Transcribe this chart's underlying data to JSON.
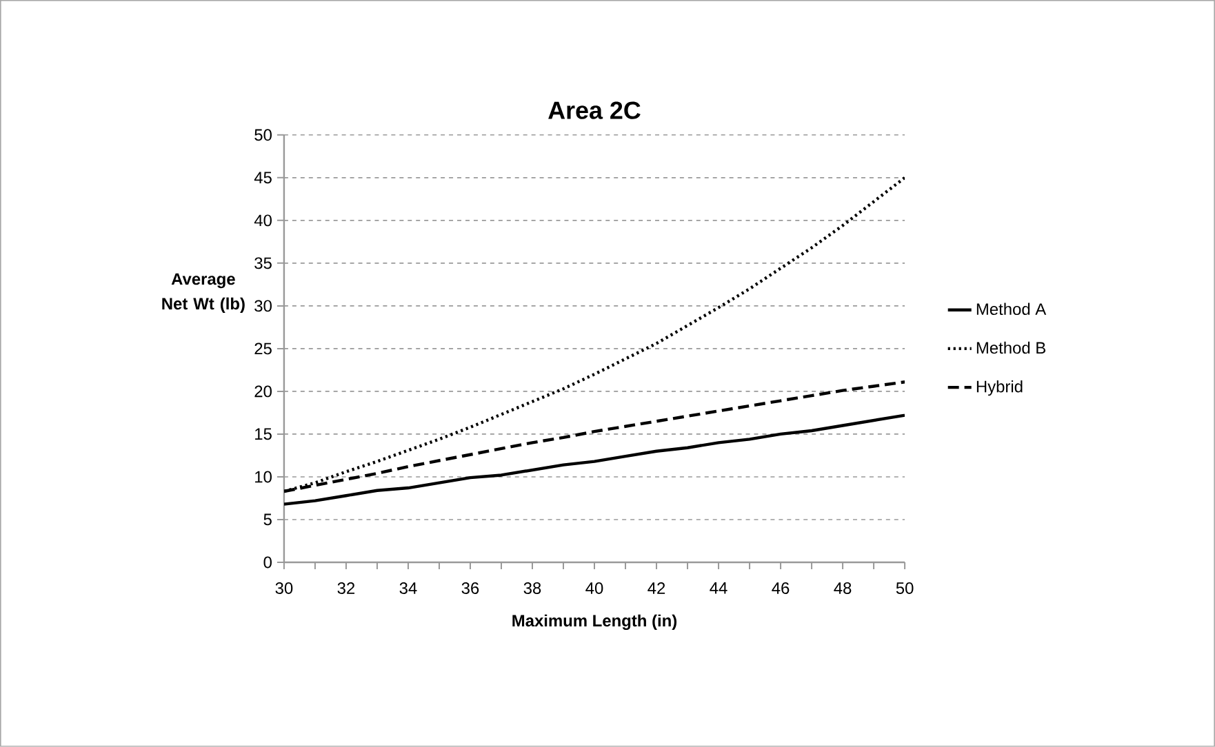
{
  "chart_data": {
    "type": "line",
    "title": "Area 2C",
    "xlabel": "Maximum Length (in)",
    "ylabel": "Average Net Wt (lb)",
    "x": [
      30,
      31,
      32,
      33,
      34,
      35,
      36,
      37,
      38,
      39,
      40,
      41,
      42,
      43,
      44,
      45,
      46,
      47,
      48,
      49,
      50
    ],
    "series": [
      {
        "name": "Method A",
        "color": "#000000",
        "line_style": "solid",
        "values": [
          6.8,
          7.2,
          7.8,
          8.4,
          8.7,
          9.3,
          9.9,
          10.2,
          10.8,
          11.4,
          11.8,
          12.4,
          13.0,
          13.4,
          14.0,
          14.4,
          15.0,
          15.4,
          16.0,
          16.6,
          17.2
        ]
      },
      {
        "name": "Method B",
        "color": "#000000",
        "line_style": "dotted",
        "values": [
          8.3,
          9.3,
          10.6,
          11.8,
          13.1,
          14.4,
          15.8,
          17.3,
          18.8,
          20.3,
          22.0,
          23.8,
          25.6,
          27.7,
          29.8,
          32.0,
          34.4,
          36.8,
          39.4,
          42.2,
          45.0
        ]
      },
      {
        "name": "Hybrid",
        "color": "#000000",
        "line_style": "dashed",
        "values": [
          8.3,
          9.0,
          9.7,
          10.4,
          11.2,
          11.9,
          12.6,
          13.3,
          14.0,
          14.6,
          15.3,
          15.9,
          16.5,
          17.1,
          17.7,
          18.3,
          18.9,
          19.5,
          20.1,
          20.6,
          21.1
        ]
      }
    ],
    "xlim": [
      30,
      50
    ],
    "ylim": [
      0,
      50
    ],
    "xticks": [
      30,
      {
        "value": 31,
        "label": null
      },
      32,
      {
        "value": 33,
        "label": null
      },
      34,
      {
        "value": 35,
        "label": null
      },
      36,
      {
        "value": 37,
        "label": null
      },
      38,
      {
        "value": 39,
        "label": null
      },
      40,
      {
        "value": 41,
        "label": null
      },
      42,
      {
        "value": 43,
        "label": null
      },
      44,
      {
        "value": 45,
        "label": null
      },
      46,
      {
        "value": 47,
        "label": null
      },
      48,
      {
        "value": 49,
        "label": null
      },
      50
    ],
    "yticks": [
      0,
      5,
      10,
      15,
      20,
      25,
      30,
      35,
      40,
      45,
      50
    ],
    "grid": "y",
    "legend": "right",
    "marker": "none"
  }
}
